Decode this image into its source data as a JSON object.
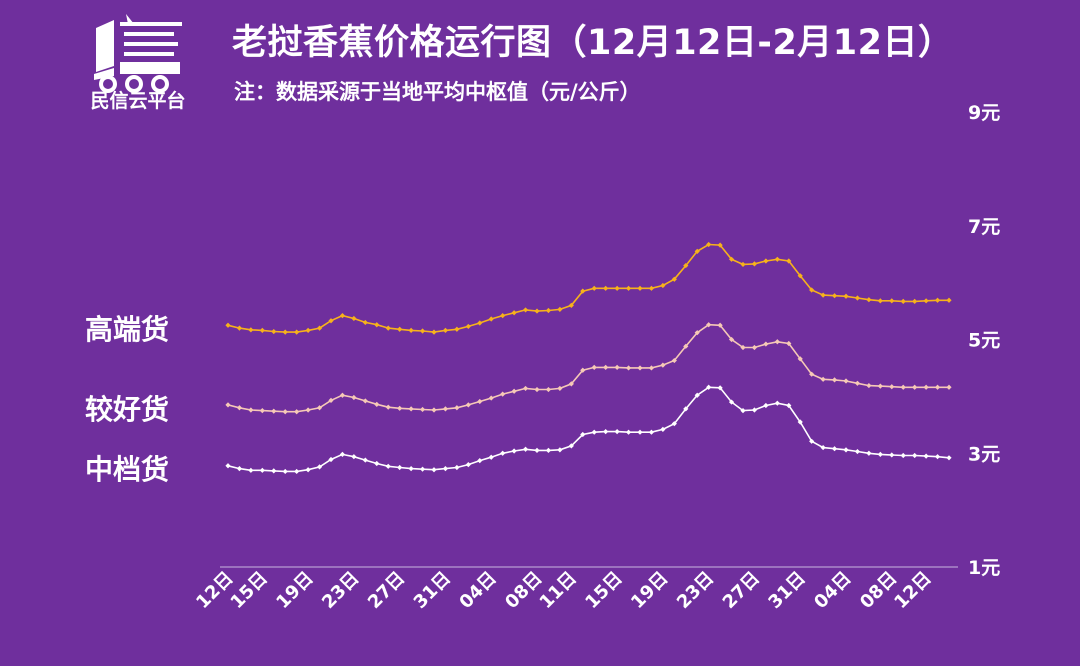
{
  "header": {
    "title": "老挝香蕉价格运行图（12月12日-2月12日）",
    "subtitle": "注：数据采源于当地平均中枢值（元/公斤）",
    "logo_text": "民信云平台"
  },
  "colors": {
    "background": "#6f2f9d",
    "high": "#f7b21b",
    "good": "#f6c9b6",
    "mid": "#ffffff",
    "axis": "#c9b7e0"
  },
  "chart_data": {
    "type": "line",
    "title": "老挝香蕉价格运行图（12月12日-2月12日）",
    "ylabel": "注：数据采源于当地平均中枢值（元/公斤）",
    "ylim": [
      1,
      9
    ],
    "yticks": [
      "9元",
      "7元",
      "5元",
      "3元",
      "1元"
    ],
    "ytick_values": [
      9,
      7,
      5,
      3,
      1
    ],
    "xticks": [
      "12日",
      "15日",
      "19日",
      "23日",
      "27日",
      "31日",
      "04日",
      "08日",
      "11日",
      "15日",
      "19日",
      "23日",
      "27日",
      "31日",
      "04日",
      "08日",
      "12日"
    ],
    "xtick_index": [
      0,
      3,
      7,
      11,
      15,
      19,
      23,
      27,
      30,
      34,
      38,
      42,
      46,
      50,
      54,
      58,
      61
    ],
    "grid": false,
    "series": [
      {
        "name": "高端货",
        "color": "#f7b21b",
        "values": [
          5.25,
          5.2,
          5.17,
          5.16,
          5.14,
          5.13,
          5.13,
          5.16,
          5.2,
          5.33,
          5.42,
          5.37,
          5.3,
          5.26,
          5.2,
          5.18,
          5.16,
          5.15,
          5.13,
          5.16,
          5.18,
          5.23,
          5.29,
          5.36,
          5.42,
          5.47,
          5.52,
          5.5,
          5.51,
          5.53,
          5.6,
          5.85,
          5.9,
          5.9,
          5.9,
          5.9,
          5.9,
          5.9,
          5.95,
          6.06,
          6.3,
          6.55,
          6.67,
          6.66,
          6.41,
          6.32,
          6.33,
          6.38,
          6.41,
          6.38,
          6.12,
          5.87,
          5.78,
          5.77,
          5.76,
          5.73,
          5.7,
          5.68,
          5.68,
          5.67,
          5.67,
          5.68,
          5.69,
          5.69
        ]
      },
      {
        "name": "较好货",
        "color": "#f6c9b6",
        "values": [
          3.85,
          3.8,
          3.76,
          3.75,
          3.74,
          3.73,
          3.73,
          3.76,
          3.8,
          3.93,
          4.02,
          3.98,
          3.92,
          3.86,
          3.81,
          3.79,
          3.78,
          3.77,
          3.76,
          3.78,
          3.8,
          3.85,
          3.91,
          3.97,
          4.04,
          4.09,
          4.14,
          4.12,
          4.12,
          4.14,
          4.22,
          4.46,
          4.51,
          4.51,
          4.51,
          4.5,
          4.5,
          4.5,
          4.55,
          4.63,
          4.88,
          5.12,
          5.26,
          5.25,
          5.0,
          4.86,
          4.86,
          4.92,
          4.96,
          4.93,
          4.66,
          4.39,
          4.3,
          4.29,
          4.27,
          4.23,
          4.19,
          4.18,
          4.17,
          4.16,
          4.16,
          4.16,
          4.16,
          4.16
        ]
      },
      {
        "name": "中档货",
        "color": "#ffffff",
        "values": [
          2.78,
          2.73,
          2.7,
          2.7,
          2.69,
          2.68,
          2.68,
          2.71,
          2.76,
          2.89,
          2.98,
          2.94,
          2.88,
          2.82,
          2.77,
          2.75,
          2.73,
          2.72,
          2.71,
          2.73,
          2.75,
          2.8,
          2.87,
          2.93,
          3.0,
          3.04,
          3.07,
          3.05,
          3.05,
          3.06,
          3.13,
          3.33,
          3.37,
          3.38,
          3.38,
          3.37,
          3.37,
          3.37,
          3.42,
          3.52,
          3.78,
          4.02,
          4.16,
          4.15,
          3.9,
          3.75,
          3.76,
          3.84,
          3.88,
          3.84,
          3.55,
          3.21,
          3.1,
          3.08,
          3.06,
          3.03,
          3.0,
          2.98,
          2.97,
          2.96,
          2.96,
          2.95,
          2.94,
          2.92
        ]
      }
    ]
  }
}
